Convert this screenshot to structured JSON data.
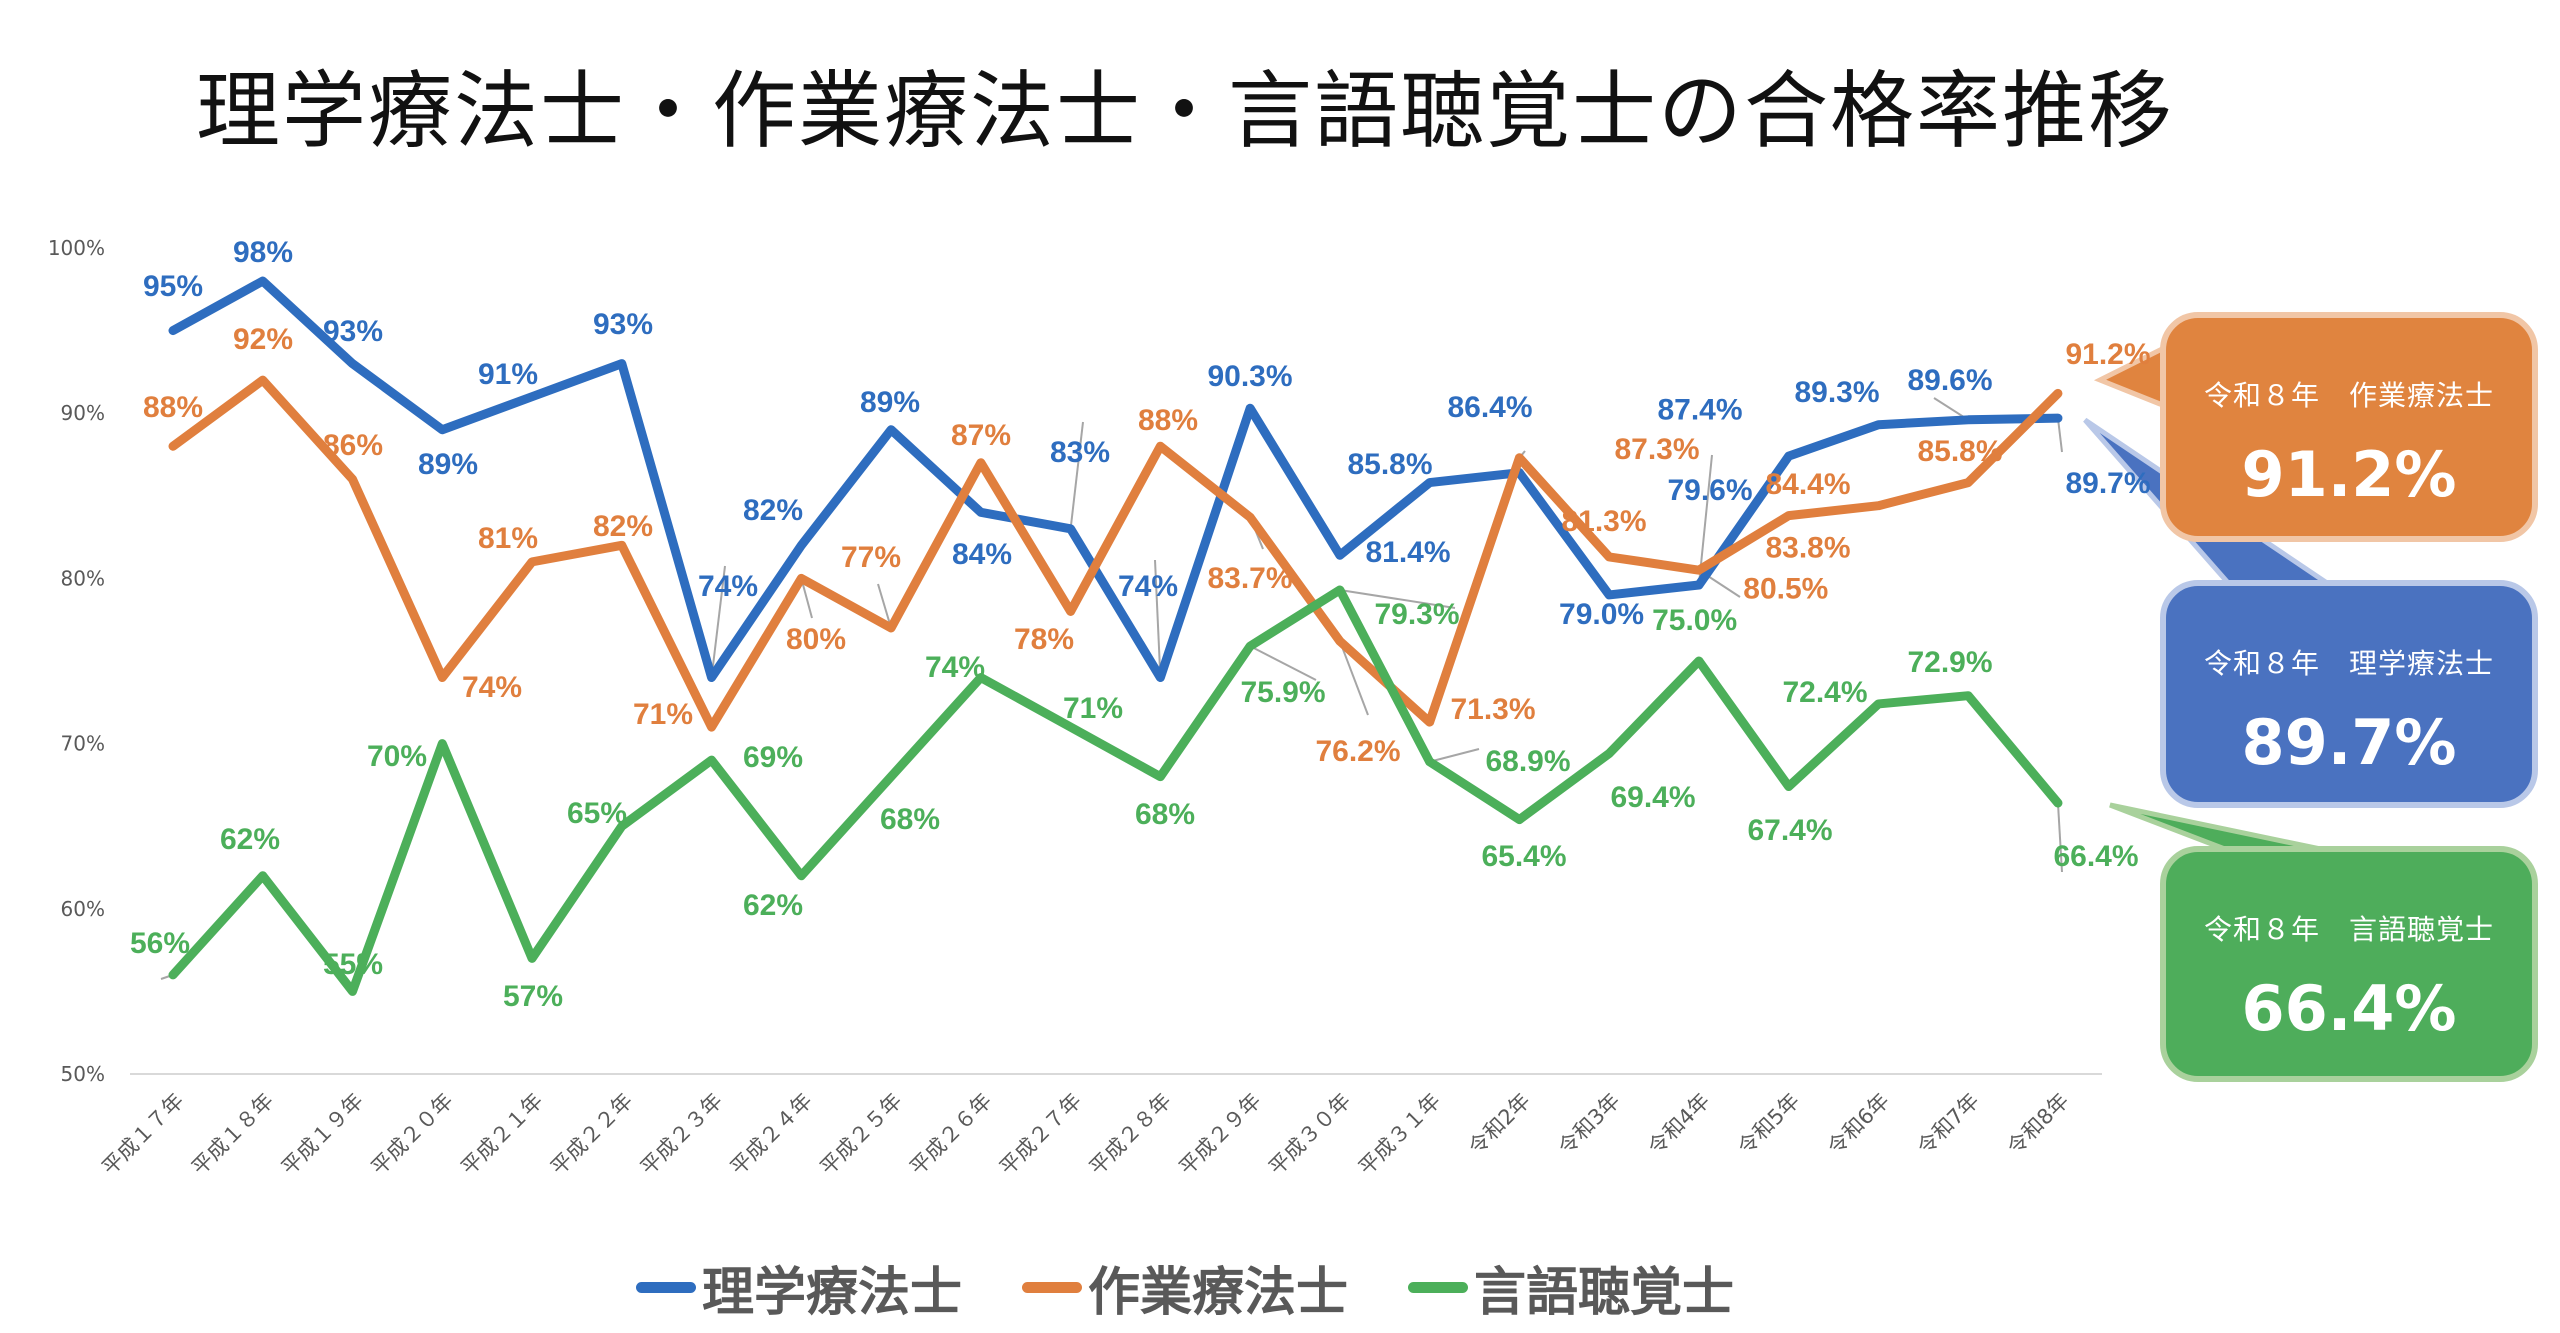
{
  "title": "理学療法士・作業療法士・言語聴覚士の合格率推移",
  "chart_data": {
    "type": "line",
    "title": "理学療法士・作業療法士・言語聴覚士の合格率推移",
    "xlabel": "",
    "ylabel": "",
    "ylim": [
      50,
      100
    ],
    "yticks": [
      "50%",
      "60%",
      "70%",
      "80%",
      "90%",
      "100%"
    ],
    "ytick_values": [
      50,
      60,
      70,
      80,
      90,
      100
    ],
    "grid": false,
    "legend_position": "bottom",
    "categories": [
      "平成１７年",
      "平成１８年",
      "平成１９年",
      "平成２０年",
      "平成２１年",
      "平成２２年",
      "平成２３年",
      "平成２４年",
      "平成２５年",
      "平成２６年",
      "平成２７年",
      "平成２８年",
      "平成２９年",
      "平成３０年",
      "平成３１年",
      "令和2年",
      "令和3年",
      "令和4年",
      "令和5年",
      "令和6年",
      "令和7年",
      "令和8年"
    ],
    "series": [
      {
        "name": "理学療法士",
        "color": "#2E6DBF",
        "values": [
          95,
          98,
          93,
          89,
          91,
          93,
          74,
          82,
          89,
          84,
          83,
          74,
          90.3,
          81.4,
          85.8,
          86.4,
          79.0,
          79.6,
          87.4,
          89.3,
          89.6,
          89.7
        ],
        "labels": [
          "95%",
          "98%",
          "93%",
          "89%",
          "91%",
          "93%",
          "74%",
          "82%",
          "89%",
          "84%",
          "83%",
          "74%",
          "90.3%",
          "81.4%",
          "85.8%",
          "86.4%",
          "79.0%",
          "79.6%",
          "87.4%",
          "89.3%",
          "89.6%",
          "89.7%"
        ]
      },
      {
        "name": "作業療法士",
        "color": "#E07F3E",
        "values": [
          88,
          92,
          86,
          74,
          81,
          82,
          71,
          80,
          77,
          87,
          78,
          88,
          83.7,
          76.2,
          71.3,
          87.3,
          81.3,
          80.5,
          83.8,
          84.4,
          85.8,
          91.2
        ],
        "labels": [
          "88%",
          "92%",
          "86%",
          "74%",
          "81%",
          "82%",
          "71%",
          "80%",
          "77%",
          "87%",
          "78%",
          "88%",
          "83.7%",
          "76.2%",
          "71.3%",
          "87.3%",
          "81.3%",
          "80.5%",
          "83.8%",
          "84.4%",
          "85.8%",
          "91.2%"
        ]
      },
      {
        "name": "言語聴覚士",
        "color": "#4CAF5A",
        "values": [
          56,
          62,
          55,
          70,
          57,
          65,
          69,
          62,
          68,
          74,
          71,
          68,
          75.9,
          79.3,
          68.9,
          65.4,
          69.4,
          75.0,
          67.4,
          72.4,
          72.9,
          66.4
        ],
        "labels": [
          "56%",
          "62%",
          "55%",
          "70%",
          "57%",
          "65%",
          "69%",
          "62%",
          "68%",
          "74%",
          "71%",
          "68%",
          "75.9%",
          "79.3%",
          "68.9%",
          "65.4%",
          "69.4%",
          "75.0%",
          "67.4%",
          "72.4%",
          "72.9%",
          "66.4%"
        ]
      }
    ]
  },
  "legend": [
    {
      "label": "理学療法士",
      "color": "#2E6DBF"
    },
    {
      "label": "作業療法士",
      "color": "#E07F3E"
    },
    {
      "label": "言語聴覚士",
      "color": "#4CAF5A"
    }
  ],
  "callouts": {
    "ot": {
      "subtitle": "令和８年　作業療法士",
      "value": "91.2%",
      "color": "#E0843F"
    },
    "pt": {
      "subtitle": "令和８年　理学療法士",
      "value": "89.7%",
      "color": "#4A72C0"
    },
    "st": {
      "subtitle": "令和８年　言語聴覚士",
      "value": "66.4%",
      "color": "#4EAD5B"
    }
  }
}
